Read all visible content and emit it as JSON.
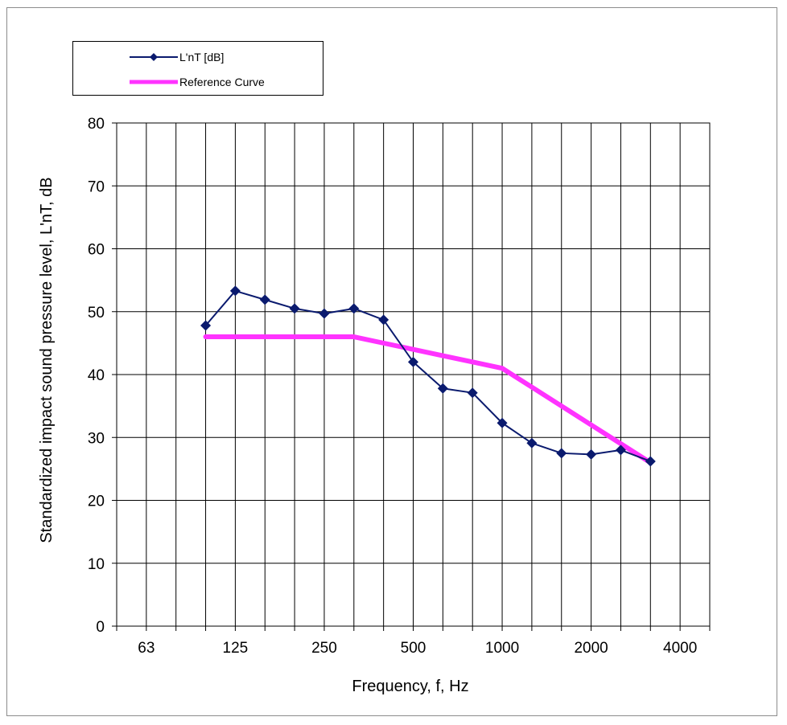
{
  "chart_data": {
    "type": "line",
    "xlabel": "Frequency, f, Hz",
    "ylabel": "Standardized impact sound pressure level, L'nT, dB",
    "ylim": [
      0,
      80
    ],
    "yticks": [
      0,
      10,
      20,
      30,
      40,
      50,
      60,
      70,
      80
    ],
    "x_scale": "log-octave (1/3-octave bands)",
    "x_tick_labels": [
      "63",
      "125",
      "250",
      "500",
      "1000",
      "2000",
      "4000"
    ],
    "grid": true,
    "legend_position": "top-left",
    "series": [
      {
        "name": "L'nT [dB]",
        "color": "#0a1a6e",
        "marker": "diamond",
        "x": [
          100,
          125,
          160,
          200,
          250,
          315,
          400,
          500,
          630,
          800,
          1000,
          1250,
          1600,
          2000,
          2500,
          3150
        ],
        "y": [
          47.8,
          53.3,
          51.9,
          50.5,
          49.7,
          50.5,
          48.7,
          42.0,
          37.8,
          37.1,
          32.3,
          29.1,
          27.5,
          27.3,
          28.0,
          26.2
        ]
      },
      {
        "name": "Reference Curve",
        "color": "#ff33ff",
        "marker": "none",
        "x": [
          100,
          125,
          160,
          200,
          250,
          315,
          400,
          500,
          630,
          800,
          1000,
          1250,
          1600,
          2000,
          2500,
          3150
        ],
        "y": [
          46,
          46,
          46,
          46,
          46,
          46,
          45,
          44,
          43,
          42,
          41,
          38,
          35,
          32,
          29,
          26
        ]
      }
    ]
  }
}
